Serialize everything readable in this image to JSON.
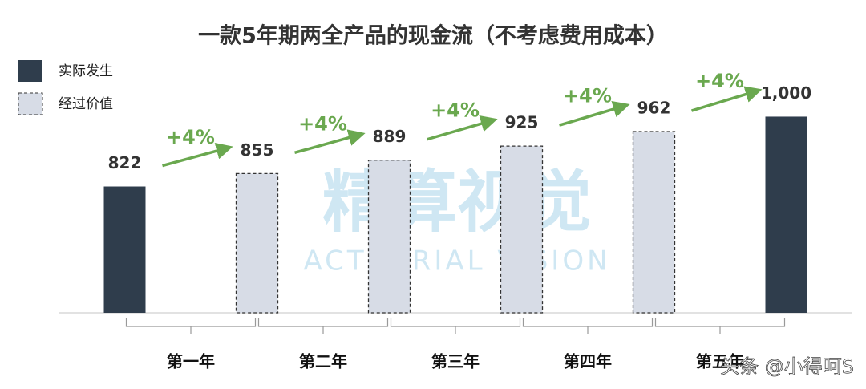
{
  "chart_data": {
    "type": "bar",
    "title": "一款5年期两全产品的现金流（不考虑费用成本）",
    "series": [
      {
        "name": "实际发生",
        "color": "#2f3d4c",
        "dashed": false,
        "values": [
          822,
          null,
          null,
          null,
          null,
          1000
        ],
        "value_labels": [
          "822",
          null,
          null,
          null,
          null,
          "1,000"
        ]
      },
      {
        "name": "经过价值",
        "color": "#d7dce6",
        "dashed": true,
        "values": [
          null,
          855,
          889,
          925,
          962,
          null
        ]
      }
    ],
    "growth_labels": [
      "+4%",
      "+4%",
      "+4%",
      "+4%",
      "+4%"
    ],
    "growth_color": "#6aa84f",
    "periods": [
      "第一年",
      "第二年",
      "第三年",
      "第四年",
      "第五年"
    ],
    "ylim": [
      500,
      1050
    ],
    "watermark": [
      "精算视觉",
      "ACTUARIAL VISION"
    ],
    "credit": "头条 @小得呵S"
  }
}
